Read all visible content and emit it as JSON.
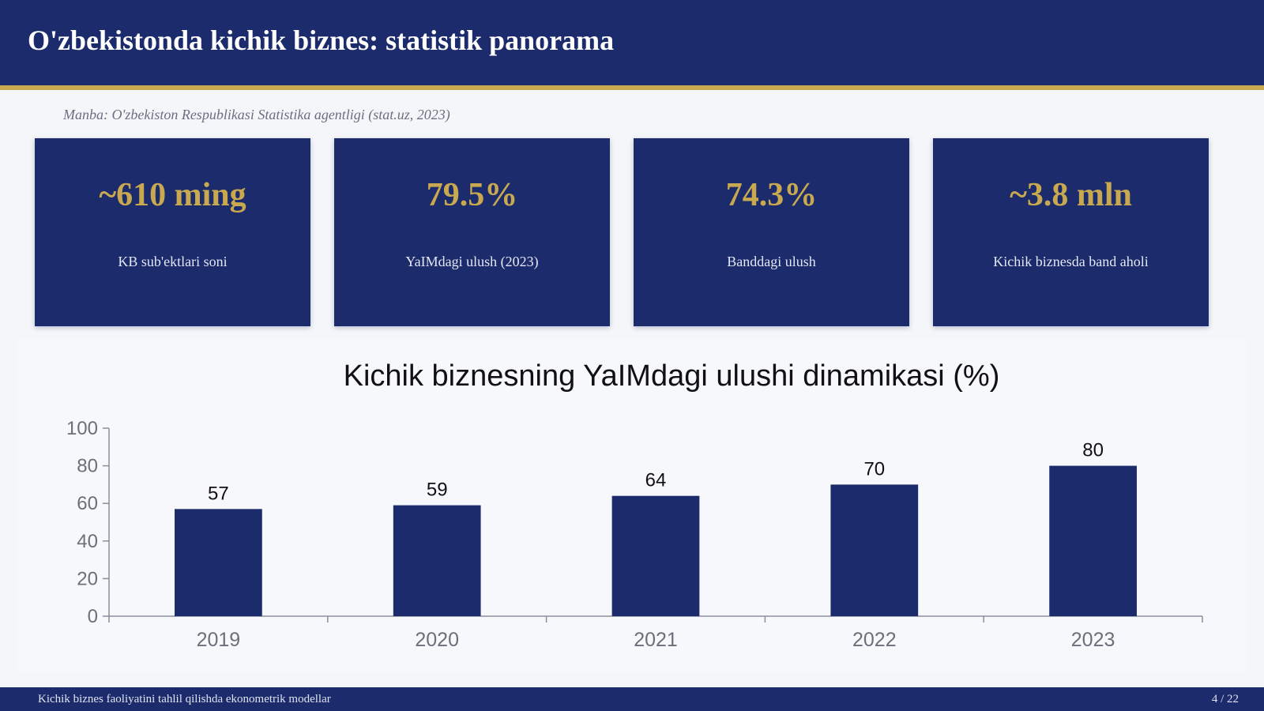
{
  "header": {
    "title": "O'zbekistonda kichik biznes: statistik panorama"
  },
  "source": "Manba: O'zbekiston Respublikasi Statistika agentligi (stat.uz, 2023)",
  "cards": [
    {
      "value": "~610 ming",
      "label": "KB sub'ektlari soni"
    },
    {
      "value": "79.5%",
      "label": "YaIMdagi ulush (2023)"
    },
    {
      "value": "74.3%",
      "label": "Banddagi ulush"
    },
    {
      "value": "~3.8 mln",
      "label": "Kichik biznesda band aholi"
    }
  ],
  "chart_data": {
    "type": "bar",
    "title": "Kichik biznesning YaIMdagi ulushi dinamikasi (%)",
    "categories": [
      "2019",
      "2020",
      "2021",
      "2022",
      "2023"
    ],
    "values": [
      57,
      59,
      64,
      70,
      80
    ],
    "data_labels": [
      "57",
      "59",
      "64",
      "70",
      "80"
    ],
    "ylim": [
      0,
      100
    ],
    "yticks": [
      0,
      20,
      40,
      60,
      80,
      100
    ],
    "xlabel": "",
    "ylabel": "",
    "grid": false,
    "legend": "none",
    "bar_color": "#1c2b6b"
  },
  "footer": {
    "text": "Kichik biznes faoliyatini tahlil qilishda ekonometrik modellar",
    "page": "4 / 22"
  },
  "colors": {
    "navy": "#1c2b6b",
    "gold": "#c9a94f",
    "background": "#f5f6fa"
  }
}
